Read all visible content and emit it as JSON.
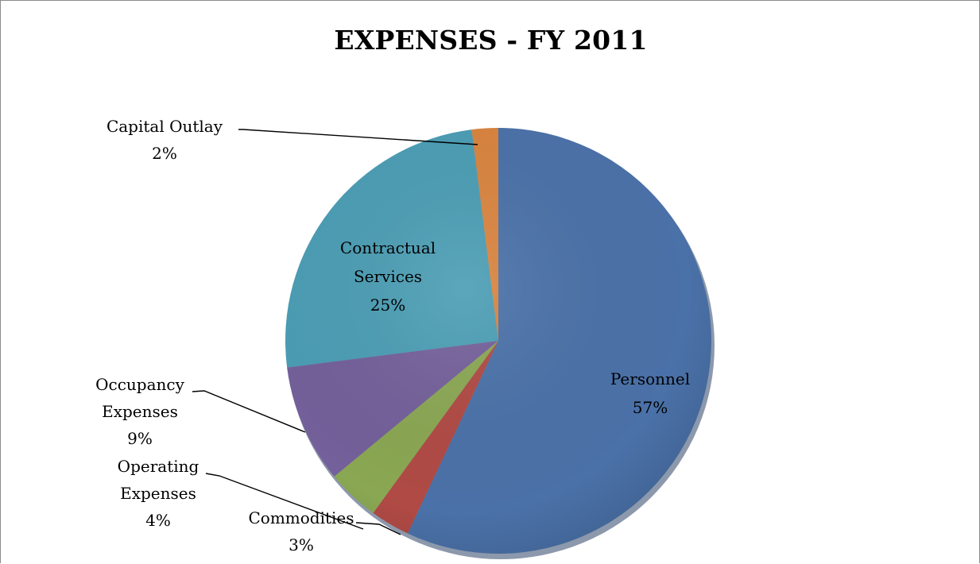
{
  "chart_data": {
    "type": "pie",
    "title": "EXPENSES - FY 2011",
    "slices": [
      {
        "name": "Personnel",
        "value": 57,
        "label_lines": [
          "Personnel"
        ],
        "pct_label": "57%",
        "color": "#4a71a8",
        "label_placement": "inside"
      },
      {
        "name": "Commodities",
        "value": 3,
        "label_lines": [
          "Commodities"
        ],
        "pct_label": "3%",
        "color": "#b04a45",
        "label_placement": "outside-leader"
      },
      {
        "name": "Operating Expenses",
        "value": 4,
        "label_lines": [
          "Operating",
          "Expenses"
        ],
        "pct_label": "4%",
        "color": "#8aa753",
        "label_placement": "outside-leader"
      },
      {
        "name": "Occupancy Expenses",
        "value": 9,
        "label_lines": [
          "Occupancy",
          "Expenses"
        ],
        "pct_label": "9%",
        "color": "#74609a",
        "label_placement": "outside-leader"
      },
      {
        "name": "Contractual Services",
        "value": 25,
        "label_lines": [
          "Contractual",
          "Services"
        ],
        "pct_label": "25%",
        "color": "#4b9db4",
        "label_placement": "inside"
      },
      {
        "name": "Capital Outlay",
        "value": 2,
        "label_lines": [
          "Capital Outlay"
        ],
        "pct_label": "2%",
        "color": "#d9843f",
        "label_placement": "outside-leader"
      }
    ],
    "start_angle": "12 o'clock",
    "direction": "clockwise",
    "legend": "none"
  }
}
